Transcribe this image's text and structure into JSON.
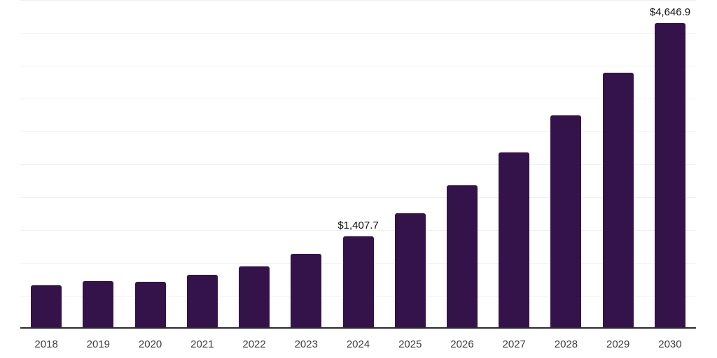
{
  "chart_data": {
    "type": "bar",
    "title": "",
    "xlabel": "",
    "ylabel": "",
    "categories": [
      "2018",
      "2019",
      "2020",
      "2021",
      "2022",
      "2023",
      "2024",
      "2025",
      "2026",
      "2027",
      "2028",
      "2029",
      "2030"
    ],
    "values": [
      655,
      720,
      712,
      815,
      945,
      1140,
      1407.7,
      1750,
      2180,
      2685,
      3240,
      3895,
      4646.9
    ],
    "data_labels": [
      "",
      "",
      "",
      "",
      "",
      "",
      "$1,407.7",
      "",
      "",
      "",
      "",
      "",
      "$4,646.9"
    ],
    "ylim": [
      0,
      5000
    ],
    "gridline_step": 500,
    "grid": true,
    "legend_position": "none",
    "colors": {
      "bar": "#34124a",
      "gridline": "#f0f0f0",
      "axis_line": "#2b2b2b",
      "tick_label": "#3d3d3d",
      "data_label": "#111111"
    }
  }
}
